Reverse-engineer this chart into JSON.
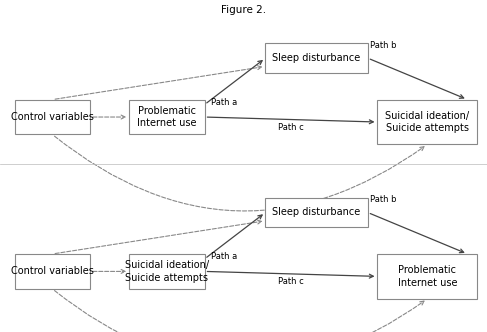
{
  "title": "Figure 2.",
  "background_color": "#ffffff",
  "box_edge_color": "#888888",
  "box_face_color": "#ffffff",
  "arrow_color": "#444444",
  "dashed_color": "#888888",
  "text_color": "#000000",
  "font_size_box": 7.0,
  "font_size_label": 6.0,
  "font_size_title": 7.5,
  "diagram1": {
    "ctrl": [
      0.03,
      0.595,
      0.155,
      0.105
    ],
    "piu": [
      0.265,
      0.595,
      0.155,
      0.105
    ],
    "slp": [
      0.545,
      0.78,
      0.21,
      0.09
    ],
    "sui": [
      0.775,
      0.565,
      0.205,
      0.135
    ]
  },
  "diagram2": {
    "ctrl": [
      0.03,
      0.13,
      0.155,
      0.105
    ],
    "mid": [
      0.265,
      0.13,
      0.155,
      0.105
    ],
    "slp": [
      0.545,
      0.315,
      0.21,
      0.09
    ],
    "piu": [
      0.775,
      0.1,
      0.205,
      0.135
    ]
  }
}
